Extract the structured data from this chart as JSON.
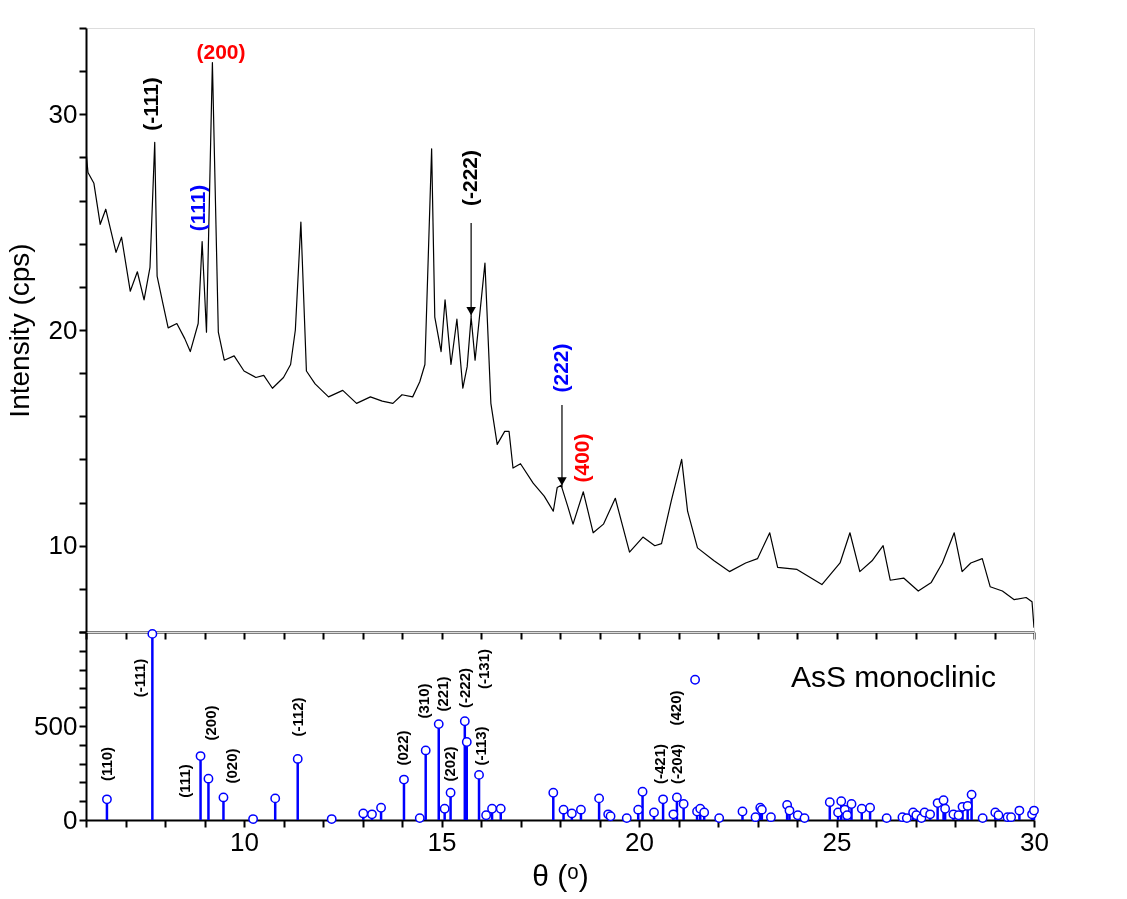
{
  "chart_data": [
    {
      "type": "line",
      "ylabel": "Intensity (cps)",
      "xlim": [
        6,
        30
      ],
      "ylim": [
        6,
        34
      ],
      "xticks": [
        {
          "value": 6,
          "label": null
        },
        {
          "value": 7,
          "label": null
        },
        {
          "value": 8,
          "label": null
        },
        {
          "value": 9,
          "label": null
        },
        {
          "value": 10,
          "label": null
        },
        {
          "value": 11,
          "label": null
        },
        {
          "value": 12,
          "label": null
        },
        {
          "value": 13,
          "label": null
        },
        {
          "value": 14,
          "label": null
        },
        {
          "value": 15,
          "label": null
        },
        {
          "value": 16,
          "label": null
        },
        {
          "value": 17,
          "label": null
        },
        {
          "value": 18,
          "label": null
        },
        {
          "value": 19,
          "label": null
        },
        {
          "value": 20,
          "label": null
        },
        {
          "value": 21,
          "label": null
        },
        {
          "value": 22,
          "label": null
        },
        {
          "value": 23,
          "label": null
        },
        {
          "value": 24,
          "label": null
        },
        {
          "value": 25,
          "label": null
        },
        {
          "value": 26,
          "label": null
        },
        {
          "value": 27,
          "label": null
        },
        {
          "value": 28,
          "label": null
        },
        {
          "value": 29,
          "label": null
        },
        {
          "value": 30,
          "label": null
        }
      ],
      "yticks": [
        {
          "value": 6,
          "label": null
        },
        {
          "value": 8,
          "label": null
        },
        10,
        {
          "value": 12,
          "label": null
        },
        {
          "value": 14,
          "label": null
        },
        {
          "value": 16,
          "label": null
        },
        {
          "value": 18,
          "label": null
        },
        20,
        {
          "value": 22,
          "label": null
        },
        {
          "value": 24,
          "label": null
        },
        {
          "value": 26,
          "label": null
        },
        {
          "value": 28,
          "label": null
        },
        30,
        {
          "value": 32,
          "label": null
        },
        {
          "value": 34,
          "label": null
        }
      ],
      "tick_labels": "y",
      "grid": false,
      "marker": "none",
      "line_style": "solid",
      "series": [
        {
          "color": "#000000",
          "x": [
            6.0,
            6.05,
            6.2,
            6.36,
            6.5,
            6.76,
            6.9,
            7.12,
            7.3,
            7.47,
            7.62,
            7.74,
            7.8,
            7.95,
            8.08,
            8.3,
            8.5,
            8.64,
            8.84,
            8.94,
            9.05,
            9.2,
            9.35,
            9.5,
            9.75,
            10.0,
            10.3,
            10.5,
            10.72,
            11.0,
            11.18,
            11.3,
            11.44,
            11.58,
            11.8,
            12.14,
            12.5,
            12.85,
            13.2,
            13.5,
            13.77,
            14.0,
            14.27,
            14.45,
            14.58,
            14.75,
            14.83,
            14.99,
            15.09,
            15.24,
            15.39,
            15.54,
            15.65,
            15.75,
            15.85,
            16.1,
            16.25,
            16.41,
            16.6,
            16.71,
            16.81,
            17.0,
            17.32,
            17.6,
            17.83,
            17.93,
            18.03,
            18.2,
            18.33,
            18.59,
            18.84,
            19.1,
            19.4,
            19.76,
            20.1,
            20.4,
            20.57,
            20.82,
            21.08,
            21.23,
            21.48,
            21.9,
            22.29,
            22.7,
            23.0,
            23.31,
            23.51,
            24.0,
            24.63,
            25.09,
            25.34,
            25.59,
            25.9,
            26.18,
            26.36,
            26.7,
            27.07,
            27.4,
            27.68,
            27.98,
            28.18,
            28.4,
            28.69,
            28.89,
            29.2,
            29.5,
            29.8,
            29.95,
            30.0
          ],
          "values": [
            28.3,
            27.3,
            26.8,
            24.9,
            25.6,
            23.6,
            24.3,
            21.8,
            22.7,
            21.4,
            22.9,
            28.7,
            22.5,
            21.2,
            20.1,
            20.3,
            19.6,
            19.0,
            20.3,
            24.1,
            19.9,
            32.4,
            19.9,
            18.6,
            18.8,
            18.1,
            17.8,
            17.9,
            17.3,
            17.8,
            18.4,
            20.0,
            25.0,
            18.1,
            17.5,
            16.9,
            17.2,
            16.6,
            16.9,
            16.7,
            16.6,
            17.0,
            16.9,
            17.6,
            18.4,
            28.4,
            20.6,
            19.0,
            21.4,
            18.4,
            20.5,
            17.3,
            18.3,
            20.6,
            18.6,
            23.1,
            16.6,
            14.7,
            15.3,
            15.3,
            13.6,
            13.8,
            12.9,
            12.3,
            11.6,
            12.7,
            12.8,
            11.8,
            11.0,
            12.5,
            10.6,
            11.0,
            12.2,
            9.7,
            10.4,
            10.0,
            10.1,
            12.1,
            14.0,
            11.6,
            9.9,
            9.3,
            8.8,
            9.2,
            9.4,
            10.6,
            9.0,
            8.9,
            8.2,
            9.2,
            10.6,
            8.8,
            9.3,
            10.0,
            8.4,
            8.5,
            7.9,
            8.3,
            9.2,
            10.6,
            8.8,
            9.2,
            9.4,
            8.1,
            7.9,
            7.5,
            7.6,
            7.4,
            6.2
          ]
        }
      ],
      "annotations": [
        "(-111)",
        "(200)",
        "(111)",
        {
          "text": "(-222)",
          "x": 15.75,
          "y": 20.6
        },
        {
          "text": "(222)",
          "x": 18.05,
          "y": 12.7
        },
        "(400)"
      ]
    },
    {
      "type": "lollipop",
      "xlabel": "θ (ᵒ)",
      "xlim": [
        6,
        30
      ],
      "ylim": [
        0,
        1000
      ],
      "xticks": [
        {
          "value": 6,
          "label": null
        },
        {
          "value": 7,
          "label": null
        },
        {
          "value": 8,
          "label": null
        },
        {
          "value": 9,
          "label": null
        },
        10,
        {
          "value": 11,
          "label": null
        },
        {
          "value": 12,
          "label": null
        },
        {
          "value": 13,
          "label": null
        },
        {
          "value": 14,
          "label": null
        },
        15,
        {
          "value": 16,
          "label": null
        },
        {
          "value": 17,
          "label": null
        },
        {
          "value": 18,
          "label": null
        },
        {
          "value": 19,
          "label": null
        },
        20,
        {
          "value": 21,
          "label": null
        },
        {
          "value": 22,
          "label": null
        },
        {
          "value": 23,
          "label": null
        },
        {
          "value": 24,
          "label": null
        },
        25,
        {
          "value": 26,
          "label": null
        },
        {
          "value": 27,
          "label": null
        },
        {
          "value": 28,
          "label": null
        },
        {
          "value": 29,
          "label": null
        },
        30
      ],
      "yticks": [
        0,
        {
          "value": 100,
          "label": null
        },
        {
          "value": 200,
          "label": null
        },
        {
          "value": 300,
          "label": null
        },
        {
          "value": 400,
          "label": null
        },
        500,
        {
          "value": 600,
          "label": null
        },
        {
          "value": 700,
          "label": null
        },
        {
          "value": 800,
          "label": null
        },
        {
          "value": 900,
          "label": null
        },
        {
          "value": 1000,
          "label": null
        }
      ],
      "grid": false,
      "marker": "circle",
      "series": [
        {
          "name": "AsS monoclinic",
          "color": "#0000ff",
          "x": [
            6.53,
            7.68,
            8.9,
            9.1,
            9.48,
            10.23,
            10.79,
            11.36,
            12.22,
            13.02,
            13.24,
            13.47,
            14.05,
            14.45,
            14.6,
            14.93,
            15.08,
            15.23,
            15.59,
            15.64,
            15.95,
            16.13,
            16.28,
            16.5,
            17.83,
            18.09,
            18.3,
            18.53,
            18.99,
            19.22,
            19.28,
            19.69,
            19.98,
            20.09,
            20.38,
            20.61,
            20.87,
            20.96,
            21.13,
            21.47,
            21.55,
            21.65,
            22.03,
            22.62,
            22.95,
            23.07,
            23.11,
            23.34,
            23.75,
            23.81,
            24.02,
            24.19,
            24.83,
            25.04,
            25.12,
            25.21,
            25.27,
            25.38,
            25.64,
            25.85,
            26.27,
            26.67,
            26.78,
            26.94,
            27.02,
            27.15,
            27.23,
            27.37,
            27.56,
            27.71,
            27.75,
            27.96,
            28.09,
            28.19,
            28.32,
            28.42,
            28.7,
            29.02,
            29.1,
            29.33,
            29.42,
            29.63,
            29.95,
            30.0
          ],
          "values": [
            110,
            990,
            340,
            220,
            120,
            5,
            115,
            325,
            5,
            35,
            30,
            65,
            215,
            10,
            370,
            510,
            60,
            145,
            525,
            415,
            240,
            25,
            60,
            60,
            145,
            55,
            35,
            55,
            115,
            30,
            20,
            10,
            55,
            150,
            40,
            110,
            30,
            120,
            85,
            45,
            60,
            40,
            10,
            45,
            15,
            65,
            55,
            15,
            80,
            50,
            25,
            10,
            95,
            40,
            100,
            55,
            25,
            85,
            60,
            65,
            10,
            15,
            10,
            40,
            25,
            10,
            40,
            30,
            90,
            105,
            60,
            30,
            25,
            70,
            75,
            135,
            10,
            40,
            25,
            15,
            15,
            50,
            30,
            50
          ]
        },
        {
          "type": "scatter",
          "color": "#0000ff",
          "x": [
            21.42
          ],
          "values": [
            746
          ]
        }
      ],
      "annotations": [
        "(110)",
        "(-111)",
        "(111)",
        "(200)",
        "(020)",
        "(-112)",
        "(022)",
        "(310)",
        "(221)",
        "(202)",
        "(-222)",
        "(-113)",
        "(-131)",
        "(-421)",
        "(-204)",
        "(420)"
      ]
    }
  ]
}
